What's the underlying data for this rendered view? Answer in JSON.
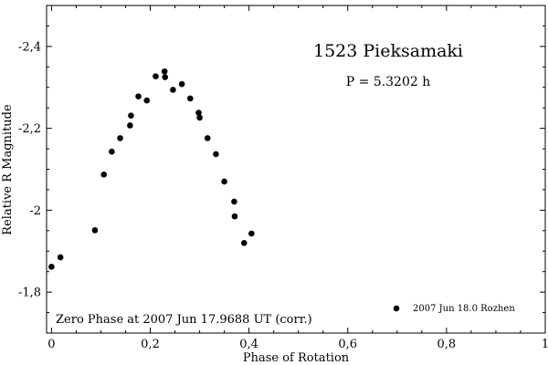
{
  "chart_data": {
    "type": "scatter",
    "title": "1523 Pieksamaki",
    "subtitle": "P = 5.3202 h",
    "xlabel": "Phase of Rotation",
    "ylabel": "Relative R Magnitude",
    "annotation": "Zero Phase at 2007 Jun 17.9688 UT (corr.)",
    "xlim": [
      -0.01,
      1.0
    ],
    "ylim": [
      -2.5,
      -1.7
    ],
    "y_inverted": true,
    "grid": false,
    "legend_position": "bottom-right",
    "x_ticks": [
      0,
      0.2,
      0.4,
      0.6,
      0.8,
      1
    ],
    "x_tick_labels": [
      "0",
      "0,2",
      "0,4",
      "0,6",
      "0,8",
      "1"
    ],
    "y_ticks": [
      -2.4,
      -2.2,
      -2.0,
      -1.8
    ],
    "y_tick_labels": [
      "-2,4",
      "-2,2",
      "-2",
      "-1,8"
    ],
    "marker_color": "#000000",
    "series": [
      {
        "name": "2007 Jun 18.0 Rozhen",
        "x": [
          0.0,
          0.018,
          0.088,
          0.106,
          0.122,
          0.139,
          0.159,
          0.161,
          0.176,
          0.193,
          0.211,
          0.229,
          0.23,
          0.246,
          0.264,
          0.281,
          0.298,
          0.3,
          0.316,
          0.333,
          0.35,
          0.37,
          0.371,
          0.39,
          0.405
        ],
        "y": [
          -1.862,
          -1.885,
          -1.951,
          -2.087,
          -2.143,
          -2.176,
          -2.207,
          -2.231,
          -2.278,
          -2.268,
          -2.327,
          -2.339,
          -2.325,
          -2.294,
          -2.308,
          -2.273,
          -2.238,
          -2.226,
          -2.176,
          -2.137,
          -2.07,
          -2.021,
          -1.985,
          -1.92,
          -1.943
        ]
      }
    ]
  }
}
